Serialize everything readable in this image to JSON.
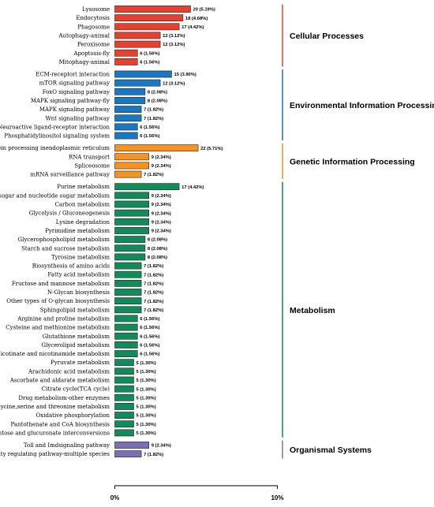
{
  "chart_data": {
    "type": "bar",
    "orientation": "horizontal",
    "xlim": [
      0,
      10
    ],
    "x_ticks": [
      "0%",
      "10%"
    ],
    "groups": [
      {
        "name": "Cellular Processes",
        "color": "#e8402e",
        "items": [
          {
            "term": "Lysosome",
            "count": 20,
            "label": "20 (5.19%)"
          },
          {
            "term": "Endocytosis",
            "count": 18,
            "label": "18 (4.68%)"
          },
          {
            "term": "Phagosome",
            "count": 17,
            "label": "17 (4.42%)"
          },
          {
            "term": "Autophagy-animal",
            "count": 12,
            "label": "12 (3.12%)"
          },
          {
            "term": "Peroxisome",
            "count": 12,
            "label": "12 (3.12%)"
          },
          {
            "term": "Apoptosis-fly",
            "count": 6,
            "label": "6 (1.56%)"
          },
          {
            "term": "Mitophagy-animal",
            "count": 6,
            "label": "6 (1.56%)"
          }
        ]
      },
      {
        "name": "Environmental Information Processing",
        "color": "#1a78c2",
        "items": [
          {
            "term": "ECM-receptori interaction",
            "count": 15,
            "label": "15 (3.90%)"
          },
          {
            "term": "mTOR signaling pathway",
            "count": 12,
            "label": "12 (3.12%)"
          },
          {
            "term": "FoxO signaling pathway",
            "count": 8,
            "label": "8 (2.08%)"
          },
          {
            "term": "MAPK signaling pathway-fly",
            "count": 8,
            "label": "8 (2.08%)"
          },
          {
            "term": "MAPK signaling pathway",
            "count": 7,
            "label": "7 (1.82%)"
          },
          {
            "term": "Wnt signaling pathway",
            "count": 7,
            "label": "7 (1.82%)"
          },
          {
            "term": "Neuroactive ligand-receptor interaction",
            "count": 6,
            "label": "6 (1.56%)"
          },
          {
            "term": "Phosphatidylinositol signaling system",
            "count": 6,
            "label": "6 (1.56%)"
          }
        ]
      },
      {
        "name": "Genetic Information Processing",
        "color": "#f7931e",
        "items": [
          {
            "term": "Protein processing inendoplasmic reticulum",
            "count": 22,
            "label": "22 (5.71%)"
          },
          {
            "term": "RNA transport",
            "count": 9,
            "label": "9 (2.34%)"
          },
          {
            "term": "Spliceosome",
            "count": 9,
            "label": "9 (2.34%)"
          },
          {
            "term": "mRNA surveillance pathway",
            "count": 7,
            "label": "7 (1.82%)"
          }
        ]
      },
      {
        "name": "Metabolism",
        "color": "#138a5a",
        "items": [
          {
            "term": "Purine metabolism",
            "count": 17,
            "label": "17 (4.42%)"
          },
          {
            "term": "Amino sugar and nucleotide sugar metabolism",
            "count": 9,
            "label": "9 (2.34%)"
          },
          {
            "term": "Carbon metabolism",
            "count": 9,
            "label": "9 (2.34%)"
          },
          {
            "term": "Glycolysis / Gluconeogenesis",
            "count": 9,
            "label": "9 (2.34%)"
          },
          {
            "term": "Lysine degradation",
            "count": 9,
            "label": "9 (2.34%)"
          },
          {
            "term": "Pyrimidine metabolism",
            "count": 9,
            "label": "9 (2.34%)"
          },
          {
            "term": "Glycerophospholipid metabolism",
            "count": 8,
            "label": "8 (2.08%)"
          },
          {
            "term": "Starch and sucrose metabolism",
            "count": 8,
            "label": "8 (2.08%)"
          },
          {
            "term": "Tyrosine metabolism",
            "count": 8,
            "label": "8 (2.08%)"
          },
          {
            "term": "Biosynthesis of amino acids",
            "count": 7,
            "label": "7 (1.82%)"
          },
          {
            "term": "Fatty acid metabolism",
            "count": 7,
            "label": "7 (1.82%)"
          },
          {
            "term": "Fructose and mannose metabolism",
            "count": 7,
            "label": "7 (1.82%)"
          },
          {
            "term": "N-Glycan biosynthesis",
            "count": 7,
            "label": "7 (1.82%)"
          },
          {
            "term": "Other types of O-glycan biosynthesis",
            "count": 7,
            "label": "7 (1.82%)"
          },
          {
            "term": "Sphingolipid metabolism",
            "count": 7,
            "label": "7 (1.82%)"
          },
          {
            "term": "Arginine and proline metabolism",
            "count": 6,
            "label": "6 (1.56%)"
          },
          {
            "term": "Cysteine and methionine metabolism",
            "count": 6,
            "label": "6 (1.56%)"
          },
          {
            "term": "Glutathione metabolism",
            "count": 6,
            "label": "6 (1.56%)"
          },
          {
            "term": "Glycerolipid metabolism",
            "count": 6,
            "label": "6 (1.56%)"
          },
          {
            "term": "Nicotinate and nicotinamide metabolism",
            "count": 6,
            "label": "6 (1.56%)"
          },
          {
            "term": "Pyruvate metabolism",
            "count": 5,
            "label": "5 (1.30%)"
          },
          {
            "term": "Arachidonic acid metabolism",
            "count": 5,
            "label": "5 (1.30%)"
          },
          {
            "term": "Ascorbate and aldarate metabolism",
            "count": 5,
            "label": "5 (1.30%)"
          },
          {
            "term": "Citrate cycle(TCA cycle)",
            "count": 5,
            "label": "5 (1.30%)"
          },
          {
            "term": "Drug metabolism-other enzymes",
            "count": 5,
            "label": "5 (1.30%)"
          },
          {
            "term": "Glycine,serine and threonine metabolism",
            "count": 5,
            "label": "5 (1.30%)"
          },
          {
            "term": "Oxidative phosphorylation",
            "count": 5,
            "label": "5 (1.30%)"
          },
          {
            "term": "Pantothenate and CoA biosynthesis",
            "count": 5,
            "label": "5 (1.30%)"
          },
          {
            "term": "Pentose and glucuronate interconversions",
            "count": 5,
            "label": "5 (1.30%)"
          }
        ]
      },
      {
        "name": "Organismal Systems",
        "color": "#7b6fb3",
        "items": [
          {
            "term": "Toll and Imdsignaling pathway",
            "count": 9,
            "label": "9 (2.34%)"
          },
          {
            "term": "Longevity regulating pathway-multiple species",
            "count": 7,
            "label": "7 (1.82%)"
          }
        ]
      }
    ]
  }
}
